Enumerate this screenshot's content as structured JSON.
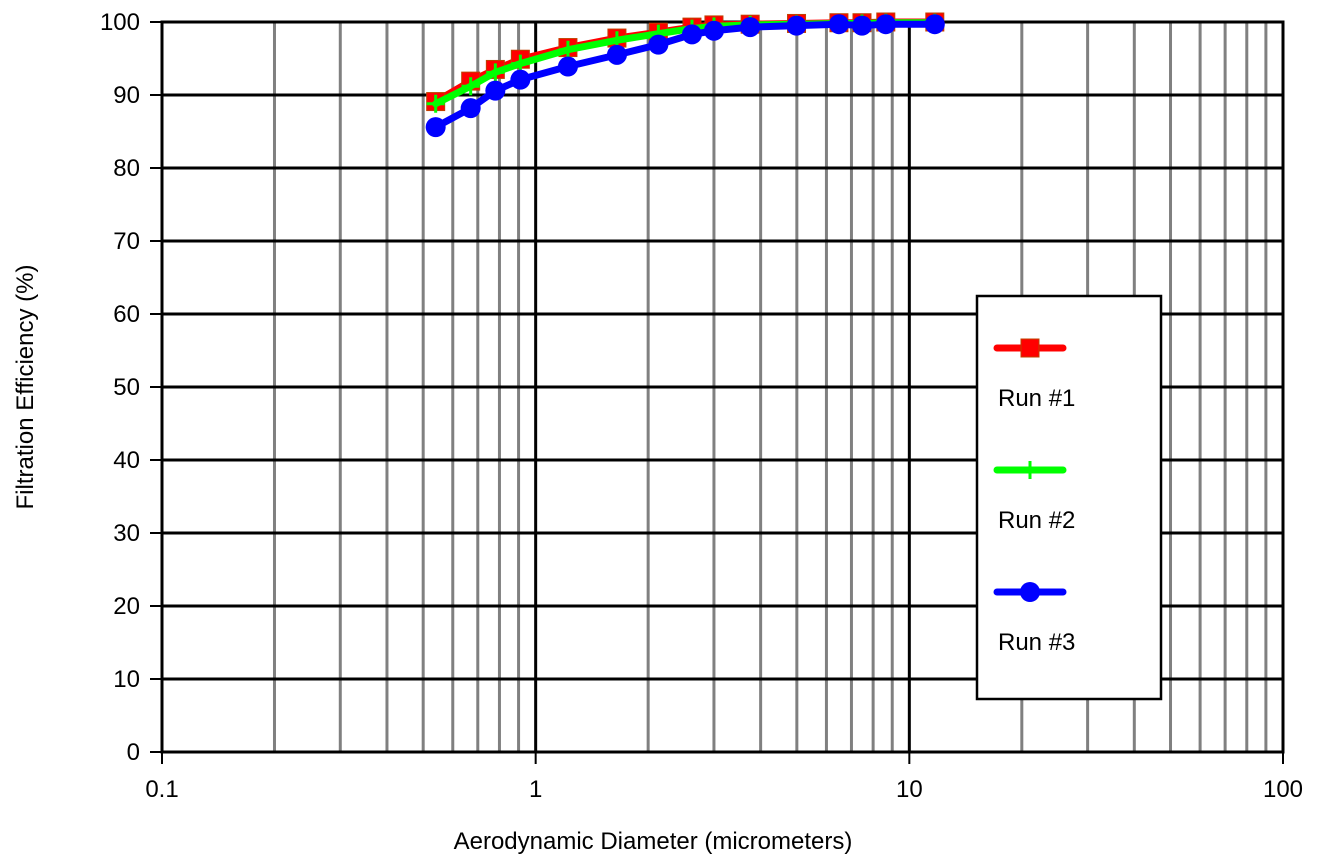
{
  "chart_data": {
    "type": "line",
    "xlabel": "Aerodynamic Diameter (micrometers)",
    "ylabel": "Filtration Efficiency (%)",
    "x_scale": "log",
    "xlim": [
      0.1,
      100
    ],
    "ylim": [
      0,
      100
    ],
    "x_ticks": [
      "0.1",
      "1",
      "10",
      "100"
    ],
    "y_ticks": [
      "0",
      "10",
      "20",
      "30",
      "40",
      "50",
      "60",
      "70",
      "80",
      "90",
      "100"
    ],
    "grid": true,
    "legend_position": "right",
    "series": [
      {
        "name": "Run #1",
        "color": "#ff0000",
        "marker": "square",
        "x": [
          0.54,
          0.67,
          0.78,
          0.91,
          1.22,
          1.65,
          2.13,
          2.62,
          3.0,
          3.75,
          4.99,
          6.48,
          7.47,
          8.65,
          11.7
        ],
        "y": [
          89.1,
          91.9,
          93.5,
          94.9,
          96.5,
          97.8,
          98.6,
          99.3,
          99.6,
          99.7,
          99.8,
          99.9,
          99.9,
          100.0,
          100.0
        ]
      },
      {
        "name": "Run #2",
        "color": "#00ff00",
        "marker": "plus",
        "x": [
          0.54,
          0.67,
          0.78,
          0.91,
          1.22,
          1.65,
          2.13,
          2.62,
          3.0,
          3.75,
          4.99,
          6.48,
          7.47,
          8.65,
          11.7
        ],
        "y": [
          88.8,
          91.2,
          93.1,
          94.3,
          96.2,
          97.5,
          98.4,
          99.1,
          99.4,
          99.6,
          99.7,
          99.8,
          99.8,
          99.9,
          99.9
        ]
      },
      {
        "name": "Run #3",
        "color": "#0000ff",
        "marker": "circle",
        "x": [
          0.54,
          0.67,
          0.78,
          0.91,
          1.22,
          1.65,
          2.13,
          2.62,
          3.0,
          3.75,
          4.99,
          6.48,
          7.47,
          8.65,
          11.7
        ],
        "y": [
          85.6,
          88.2,
          90.6,
          92.1,
          93.9,
          95.5,
          96.9,
          98.3,
          98.8,
          99.3,
          99.5,
          99.7,
          99.5,
          99.7,
          99.7
        ]
      }
    ]
  }
}
